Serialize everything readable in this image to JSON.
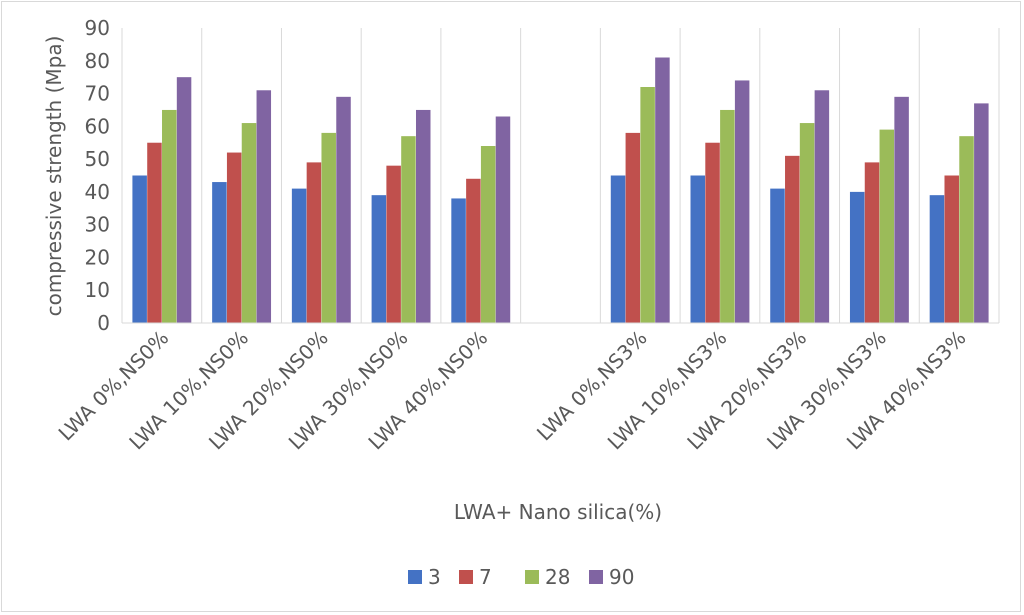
{
  "chart_data": {
    "type": "bar",
    "title": "",
    "xlabel": "LWA+ Nano silica(%)",
    "ylabel": "compressive strength (Mpa)",
    "ylim": [
      0,
      90
    ],
    "yticks": [
      0,
      10,
      20,
      30,
      40,
      50,
      60,
      70,
      80,
      90
    ],
    "grid": "vertical category separators",
    "legend_position": "bottom",
    "categories": [
      "LWA 0%,NS0%",
      "LWA 10%,NS0%",
      "LWA 20%,NS0%",
      "LWA 30%,NS0%",
      "LWA 40%,NS0%",
      "",
      "LWA 0%,NS3%",
      "LWA 10%,NS3%",
      "LWA 20%,NS3%",
      "LWA 30%,NS3%",
      "LWA 40%,NS3%"
    ],
    "series": [
      {
        "name": "3",
        "color": "#4472c4",
        "values": [
          45,
          43,
          41,
          39,
          38,
          null,
          45,
          45,
          41,
          40,
          39
        ]
      },
      {
        "name": "7",
        "color": "#c0504d",
        "values": [
          55,
          52,
          49,
          48,
          44,
          null,
          58,
          55,
          51,
          49,
          45
        ]
      },
      {
        "name": "28",
        "color": "#9bbb59",
        "values": [
          65,
          61,
          58,
          57,
          54,
          null,
          72,
          65,
          61,
          59,
          57
        ]
      },
      {
        "name": "90",
        "color": "#8064a2",
        "values": [
          75,
          71,
          69,
          65,
          63,
          null,
          81,
          74,
          71,
          69,
          67
        ]
      }
    ]
  }
}
